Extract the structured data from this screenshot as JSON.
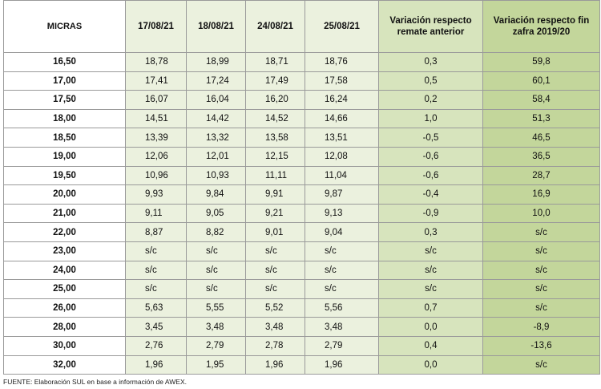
{
  "table": {
    "headers": {
      "micras": "MICRAS",
      "dates": [
        "17/08/21",
        "18/08/21",
        "24/08/21",
        "25/08/21"
      ],
      "var_remate": "Variación respecto remate anterior",
      "var_zafra": "Variación respecto fin zafra 2019/20"
    },
    "rows": [
      {
        "micras": "16,50",
        "v": [
          "18,78",
          "18,99",
          "18,71",
          "18,76"
        ],
        "var_remate": "0,3",
        "var_zafra": "59,8"
      },
      {
        "micras": "17,00",
        "v": [
          "17,41",
          "17,24",
          "17,49",
          "17,58"
        ],
        "var_remate": "0,5",
        "var_zafra": "60,1"
      },
      {
        "micras": "17,50",
        "v": [
          "16,07",
          "16,04",
          "16,20",
          "16,24"
        ],
        "var_remate": "0,2",
        "var_zafra": "58,4"
      },
      {
        "micras": "18,00",
        "v": [
          "14,51",
          "14,42",
          "14,52",
          "14,66"
        ],
        "var_remate": "1,0",
        "var_zafra": "51,3"
      },
      {
        "micras": "18,50",
        "v": [
          "13,39",
          "13,32",
          "13,58",
          "13,51"
        ],
        "var_remate": "-0,5",
        "var_zafra": "46,5"
      },
      {
        "micras": "19,00",
        "v": [
          "12,06",
          "12,01",
          "12,15",
          "12,08"
        ],
        "var_remate": "-0,6",
        "var_zafra": "36,5"
      },
      {
        "micras": "19,50",
        "v": [
          "10,96",
          "10,93",
          "11,11",
          "11,04"
        ],
        "var_remate": "-0,6",
        "var_zafra": "28,7"
      },
      {
        "micras": "20,00",
        "v": [
          "9,93",
          "9,84",
          "9,91",
          "9,87"
        ],
        "var_remate": "-0,4",
        "var_zafra": "16,9"
      },
      {
        "micras": "21,00",
        "v": [
          "9,11",
          "9,05",
          "9,21",
          "9,13"
        ],
        "var_remate": "-0,9",
        "var_zafra": "10,0"
      },
      {
        "micras": "22,00",
        "v": [
          "8,87",
          "8,82",
          "9,01",
          "9,04"
        ],
        "var_remate": "0,3",
        "var_zafra": "s/c"
      },
      {
        "micras": "23,00",
        "v": [
          "s/c",
          "s/c",
          "s/c",
          "s/c"
        ],
        "var_remate": "s/c",
        "var_zafra": "s/c"
      },
      {
        "micras": "24,00",
        "v": [
          "s/c",
          "s/c",
          "s/c",
          "s/c"
        ],
        "var_remate": "s/c",
        "var_zafra": "s/c"
      },
      {
        "micras": "25,00",
        "v": [
          "s/c",
          "s/c",
          "s/c",
          "s/c"
        ],
        "var_remate": "s/c",
        "var_zafra": "s/c"
      },
      {
        "micras": "26,00",
        "v": [
          "5,63",
          "5,55",
          "5,52",
          "5,56"
        ],
        "var_remate": "0,7",
        "var_zafra": "s/c"
      },
      {
        "micras": "28,00",
        "v": [
          "3,45",
          "3,48",
          "3,48",
          "3,48"
        ],
        "var_remate": "0,0",
        "var_zafra": "-8,9"
      },
      {
        "micras": "30,00",
        "v": [
          "2,76",
          "2,79",
          "2,78",
          "2,79"
        ],
        "var_remate": "0,4",
        "var_zafra": "-13,6"
      },
      {
        "micras": "32,00",
        "v": [
          "1,96",
          "1,95",
          "1,96",
          "1,96"
        ],
        "var_remate": "0,0",
        "var_zafra": "s/c"
      }
    ]
  },
  "source": "FUENTE: Elaboración SUL en base a información de AWEX.",
  "colors": {
    "date_fill": "#ebf1de",
    "var_remate_fill": "#d7e4bd",
    "var_zafra_fill": "#c3d69b",
    "border": "#9a9a9a"
  }
}
